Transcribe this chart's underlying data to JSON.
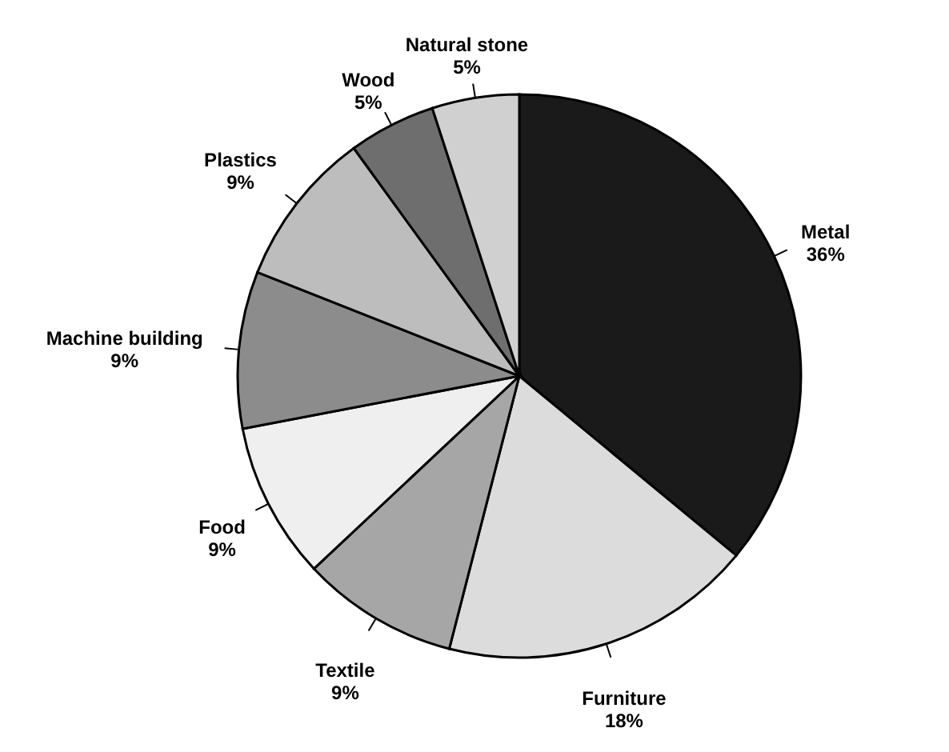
{
  "chart_data": {
    "type": "pie",
    "categories": [
      "Metal",
      "Furniture",
      "Textile",
      "Food",
      "Machine building",
      "Plastics",
      "Wood",
      "Natural stone"
    ],
    "values": [
      36,
      18,
      9,
      9,
      9,
      9,
      5,
      5
    ],
    "value_labels": [
      "36%",
      "18%",
      "9%",
      "9%",
      "9%",
      "9%",
      "5%",
      "5%"
    ],
    "colors": [
      "#1a1a1a",
      "#dcdcdc",
      "#a6a6a6",
      "#efefef",
      "#8c8c8c",
      "#bdbdbd",
      "#6e6e6e",
      "#d0d0d0"
    ]
  }
}
